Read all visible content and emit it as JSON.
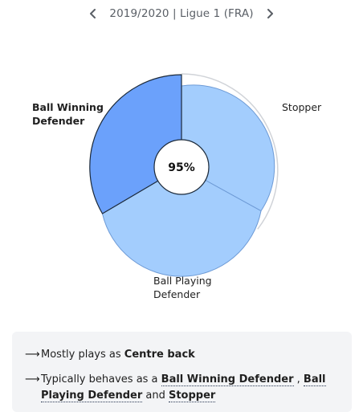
{
  "season_nav": {
    "label": "2019/2020 | Ligue 1 (FRA)",
    "prev_icon": "chevron-left-icon",
    "next_icon": "chevron-right-icon"
  },
  "role_chart": {
    "center_value": "95%",
    "roles": [
      {
        "name": "Ball Winning Defender",
        "line1": "Ball Winning",
        "line2": "Defender",
        "highlighted": true,
        "color": "#6ba1fb"
      },
      {
        "name": "Stopper",
        "line1": "Stopper",
        "line2": "",
        "highlighted": false,
        "color": "#a3cdfd"
      },
      {
        "name": "Ball Playing Defender",
        "line1": "Ball Playing",
        "line2": "Defender",
        "highlighted": false,
        "color": "#a3cdfd"
      }
    ],
    "outline_color": "#1c2a3a",
    "ring_color": "#d0d3d8"
  },
  "summary": {
    "arrow": "⟶",
    "line1_prefix": "Mostly plays as ",
    "line1_position": "Centre back",
    "line2_prefix": "Typically behaves as a ",
    "role_1": "Ball Winning Defender",
    "separator": " , ",
    "role_2a": "Ball",
    "role_2b": "Playing Defender",
    "and_text": " and ",
    "role_3": "Stopper"
  }
}
